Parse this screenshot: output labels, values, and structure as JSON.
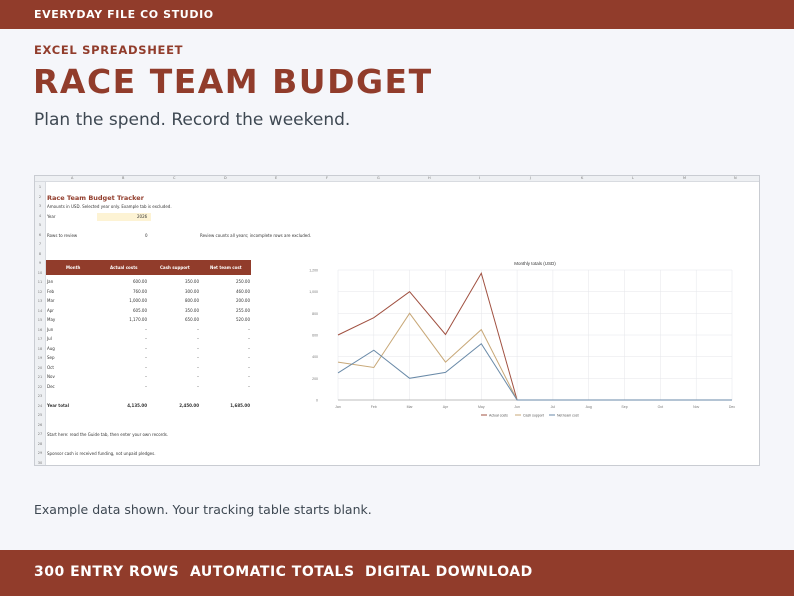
{
  "brand": "EVERYDAY FILE CO STUDIO",
  "eyebrow": "EXCEL SPREADSHEET",
  "title": "RACE TEAM BUDGET",
  "subtitle": "Plan the spend. Record the weekend.",
  "caption": "Example data shown. Your tracking table starts blank.",
  "features": [
    "300 ENTRY ROWS",
    "AUTOMATIC TOTALS",
    "DIGITAL DOWNLOAD"
  ],
  "colors": {
    "brand": "#913c2b",
    "background": "#f5f6fa",
    "text": "#3e4852"
  },
  "sheet": {
    "column_letters": [
      "A",
      "B",
      "C",
      "D",
      "E",
      "F",
      "G",
      "H",
      "I",
      "J",
      "K",
      "L",
      "M",
      "N"
    ],
    "row_numbers": [
      "1",
      "2",
      "3",
      "4",
      "5",
      "6",
      "7",
      "8",
      "9",
      "10",
      "11",
      "12",
      "13",
      "14",
      "15",
      "16",
      "17",
      "18",
      "19",
      "20",
      "21",
      "22",
      "23",
      "24",
      "25",
      "26",
      "27",
      "28",
      "29",
      "30"
    ],
    "title": "Race Team Budget Tracker",
    "note_currency": "Amounts in USD. Selected year only. Example tab is excluded.",
    "year_label": "Year",
    "year_value": "2026",
    "rows_label": "Rows to review",
    "rows_value": "0",
    "rows_note": "Review counts all years; incomplete rows are excluded.",
    "headers": [
      "Month",
      "Actual costs",
      "Cash support",
      "Net team cost"
    ],
    "rows": [
      [
        "Jan",
        "600.00",
        "350.00",
        "250.00"
      ],
      [
        "Feb",
        "760.00",
        "300.00",
        "460.00"
      ],
      [
        "Mar",
        "1,000.00",
        "800.00",
        "200.00"
      ],
      [
        "Apr",
        "605.00",
        "350.00",
        "255.00"
      ],
      [
        "May",
        "1,170.00",
        "650.00",
        "520.00"
      ],
      [
        "Jun",
        "–",
        "–",
        "–"
      ],
      [
        "Jul",
        "–",
        "–",
        "–"
      ],
      [
        "Aug",
        "–",
        "–",
        "–"
      ],
      [
        "Sep",
        "–",
        "–",
        "–"
      ],
      [
        "Oct",
        "–",
        "–",
        "–"
      ],
      [
        "Nov",
        "–",
        "–",
        "–"
      ],
      [
        "Dec",
        "–",
        "–",
        "–"
      ]
    ],
    "total_label": "Year total",
    "totals": [
      "4,135.00",
      "2,450.00",
      "1,685.00"
    ],
    "note_start": "Start here: read the Guide tab, then enter your own records.",
    "note_sponsor": "Sponsor cash is received funding, not unpaid pledges."
  },
  "chart_data": {
    "type": "line",
    "title": "Monthly totals (USD)",
    "categories": [
      "Jan",
      "Feb",
      "Mar",
      "Apr",
      "May",
      "Jun",
      "Jul",
      "Aug",
      "Sep",
      "Oct",
      "Nov",
      "Dec"
    ],
    "ylim": [
      0,
      1200
    ],
    "yticks": [
      "0",
      "200",
      "400",
      "600",
      "800",
      "1,000",
      "1,200"
    ],
    "grid": true,
    "legend": "bottom",
    "series": [
      {
        "name": "Actual costs",
        "color": "#a05040",
        "values": [
          600,
          760,
          1000,
          605,
          1170,
          0,
          0,
          0,
          0,
          0,
          0,
          0
        ]
      },
      {
        "name": "Cash support",
        "color": "#c8a878",
        "values": [
          350,
          300,
          800,
          350,
          650,
          0,
          0,
          0,
          0,
          0,
          0,
          0
        ]
      },
      {
        "name": "Net team cost",
        "color": "#6a8aa8",
        "values": [
          250,
          460,
          200,
          255,
          520,
          0,
          0,
          0,
          0,
          0,
          0,
          0
        ]
      }
    ]
  }
}
